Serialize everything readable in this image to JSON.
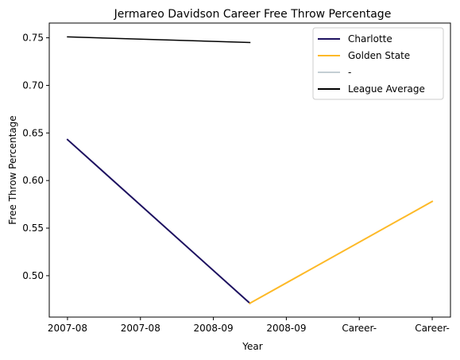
{
  "chart_data": {
    "type": "line",
    "title": "Jermareo Davidson Career Free Throw Percentage",
    "xlabel": "Year",
    "ylabel": "Free Throw Percentage",
    "x_tick_labels": [
      "2007-08",
      "2007-08",
      "2008-09",
      "2008-09",
      "Career-",
      "Career-"
    ],
    "x_range": [
      -0.25,
      5.25
    ],
    "y_range": [
      0.4565,
      0.7655
    ],
    "y_ticks": [
      0.5,
      0.55,
      0.6,
      0.65,
      0.7,
      0.75
    ],
    "grid": false,
    "legend_position": "top-right",
    "series": [
      {
        "name": "Charlotte",
        "color": "#1d1160",
        "width": 2,
        "points": [
          [
            0,
            0.643
          ],
          [
            2.5,
            0.471
          ]
        ]
      },
      {
        "name": "Golden State",
        "color": "#fdb927",
        "width": 2,
        "points": [
          [
            2.5,
            0.471
          ],
          [
            5,
            0.578
          ]
        ]
      },
      {
        "name": "-",
        "color": "#c4ced4",
        "width": 2,
        "points": []
      },
      {
        "name": "League Average",
        "color": "#000000",
        "width": 1.5,
        "points": [
          [
            0,
            0.751
          ],
          [
            2.5,
            0.745
          ]
        ]
      }
    ]
  }
}
